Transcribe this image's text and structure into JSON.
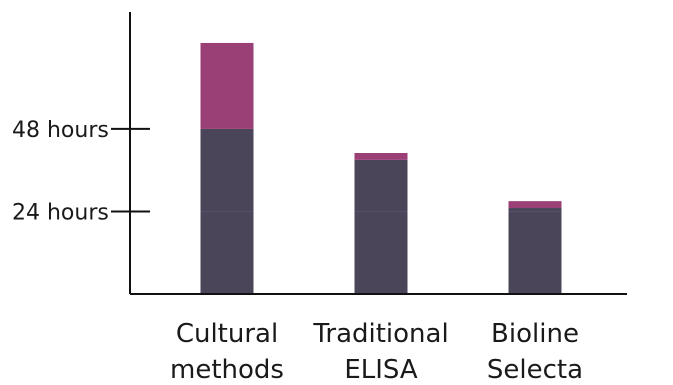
{
  "chart_data": {
    "type": "bar",
    "stacked": true,
    "categories": [
      [
        "Cultural",
        "methods"
      ],
      [
        "Traditional",
        "ELISA"
      ],
      [
        "Bioline",
        "Selecta"
      ]
    ],
    "series": [
      {
        "values": [
          48,
          39,
          25
        ],
        "color": "#4b4559"
      },
      {
        "values": [
          25,
          2,
          2
        ],
        "color": "#9b3f77"
      }
    ],
    "y_ticks": [
      {
        "value": 24,
        "label": "24 hours"
      },
      {
        "value": 48,
        "label": "48 hours"
      }
    ],
    "gridline_values": [
      24
    ],
    "gridline_color": "#565066",
    "ylim": [
      0,
      82
    ],
    "grid": false,
    "legend": "none",
    "axis_color": "#111111",
    "xlabel": "",
    "ylabel": "",
    "title": ""
  }
}
